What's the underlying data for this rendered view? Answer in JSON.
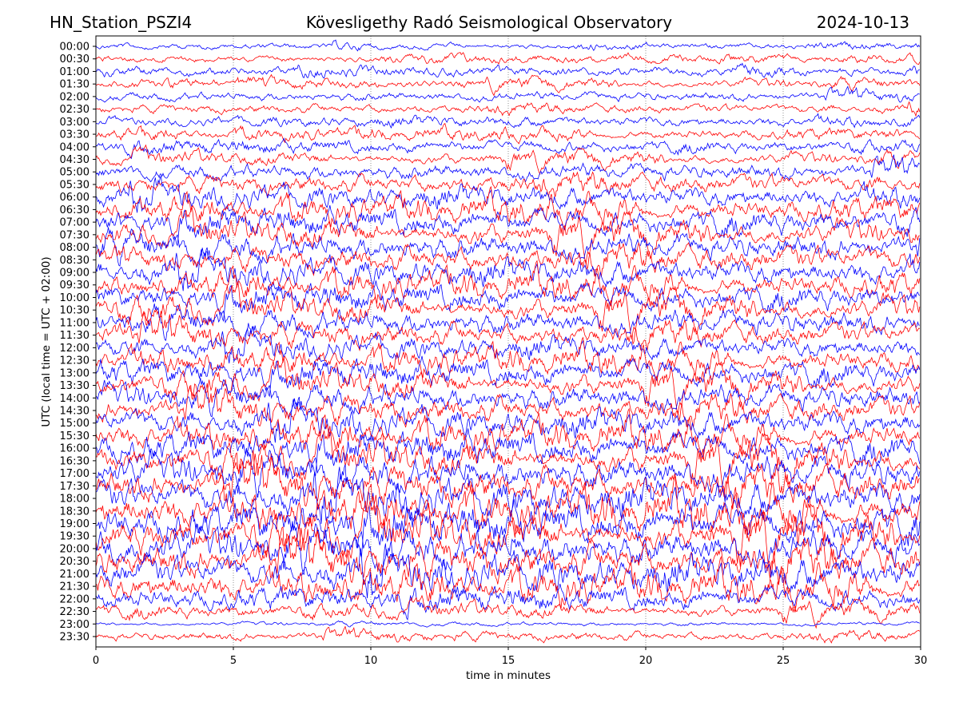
{
  "chart_data": {
    "type": "line",
    "subtype": "helicorder",
    "title_left": "HN_Station_PSZI4",
    "title_center": "Kövesligethy Radó Seismological Observatory",
    "title_right": "2024-10-13",
    "xlabel": "time in minutes",
    "ylabel": "UTC (local time = UTC + 02:00)",
    "xlim": [
      0,
      30
    ],
    "xticks": [
      "0",
      "5",
      "10",
      "15",
      "20",
      "25",
      "30"
    ],
    "xtick_values": [
      0,
      5,
      10,
      15,
      20,
      25,
      30
    ],
    "grid": "vertical dotted at x ticks",
    "series_colors": [
      "#0000ff",
      "#ff0000"
    ],
    "row_labels": [
      "00:00",
      "00:30",
      "01:00",
      "01:30",
      "02:00",
      "02:30",
      "03:00",
      "03:30",
      "04:00",
      "04:30",
      "05:00",
      "05:30",
      "06:00",
      "06:30",
      "07:00",
      "07:30",
      "08:00",
      "08:30",
      "09:00",
      "09:30",
      "10:00",
      "10:30",
      "11:00",
      "11:30",
      "12:00",
      "12:30",
      "13:00",
      "13:30",
      "14:00",
      "14:30",
      "15:00",
      "15:30",
      "16:00",
      "16:30",
      "17:00",
      "17:30",
      "18:00",
      "18:30",
      "19:00",
      "19:30",
      "20:00",
      "20:30",
      "21:00",
      "21:30",
      "22:00",
      "22:30",
      "23:00",
      "23:30"
    ],
    "relative_amplitude": [
      0.25,
      0.3,
      0.35,
      0.35,
      0.35,
      0.35,
      0.4,
      0.4,
      0.45,
      0.45,
      0.6,
      0.7,
      0.8,
      0.85,
      0.9,
      0.9,
      0.95,
      0.95,
      0.95,
      0.9,
      0.9,
      0.9,
      0.9,
      0.85,
      0.8,
      0.85,
      0.9,
      0.9,
      0.95,
      0.95,
      1.0,
      1.0,
      1.05,
      1.1,
      1.2,
      1.25,
      1.3,
      1.3,
      1.3,
      1.3,
      1.3,
      1.3,
      1.25,
      1.1,
      0.8,
      0.5,
      0.15,
      0.35
    ]
  }
}
